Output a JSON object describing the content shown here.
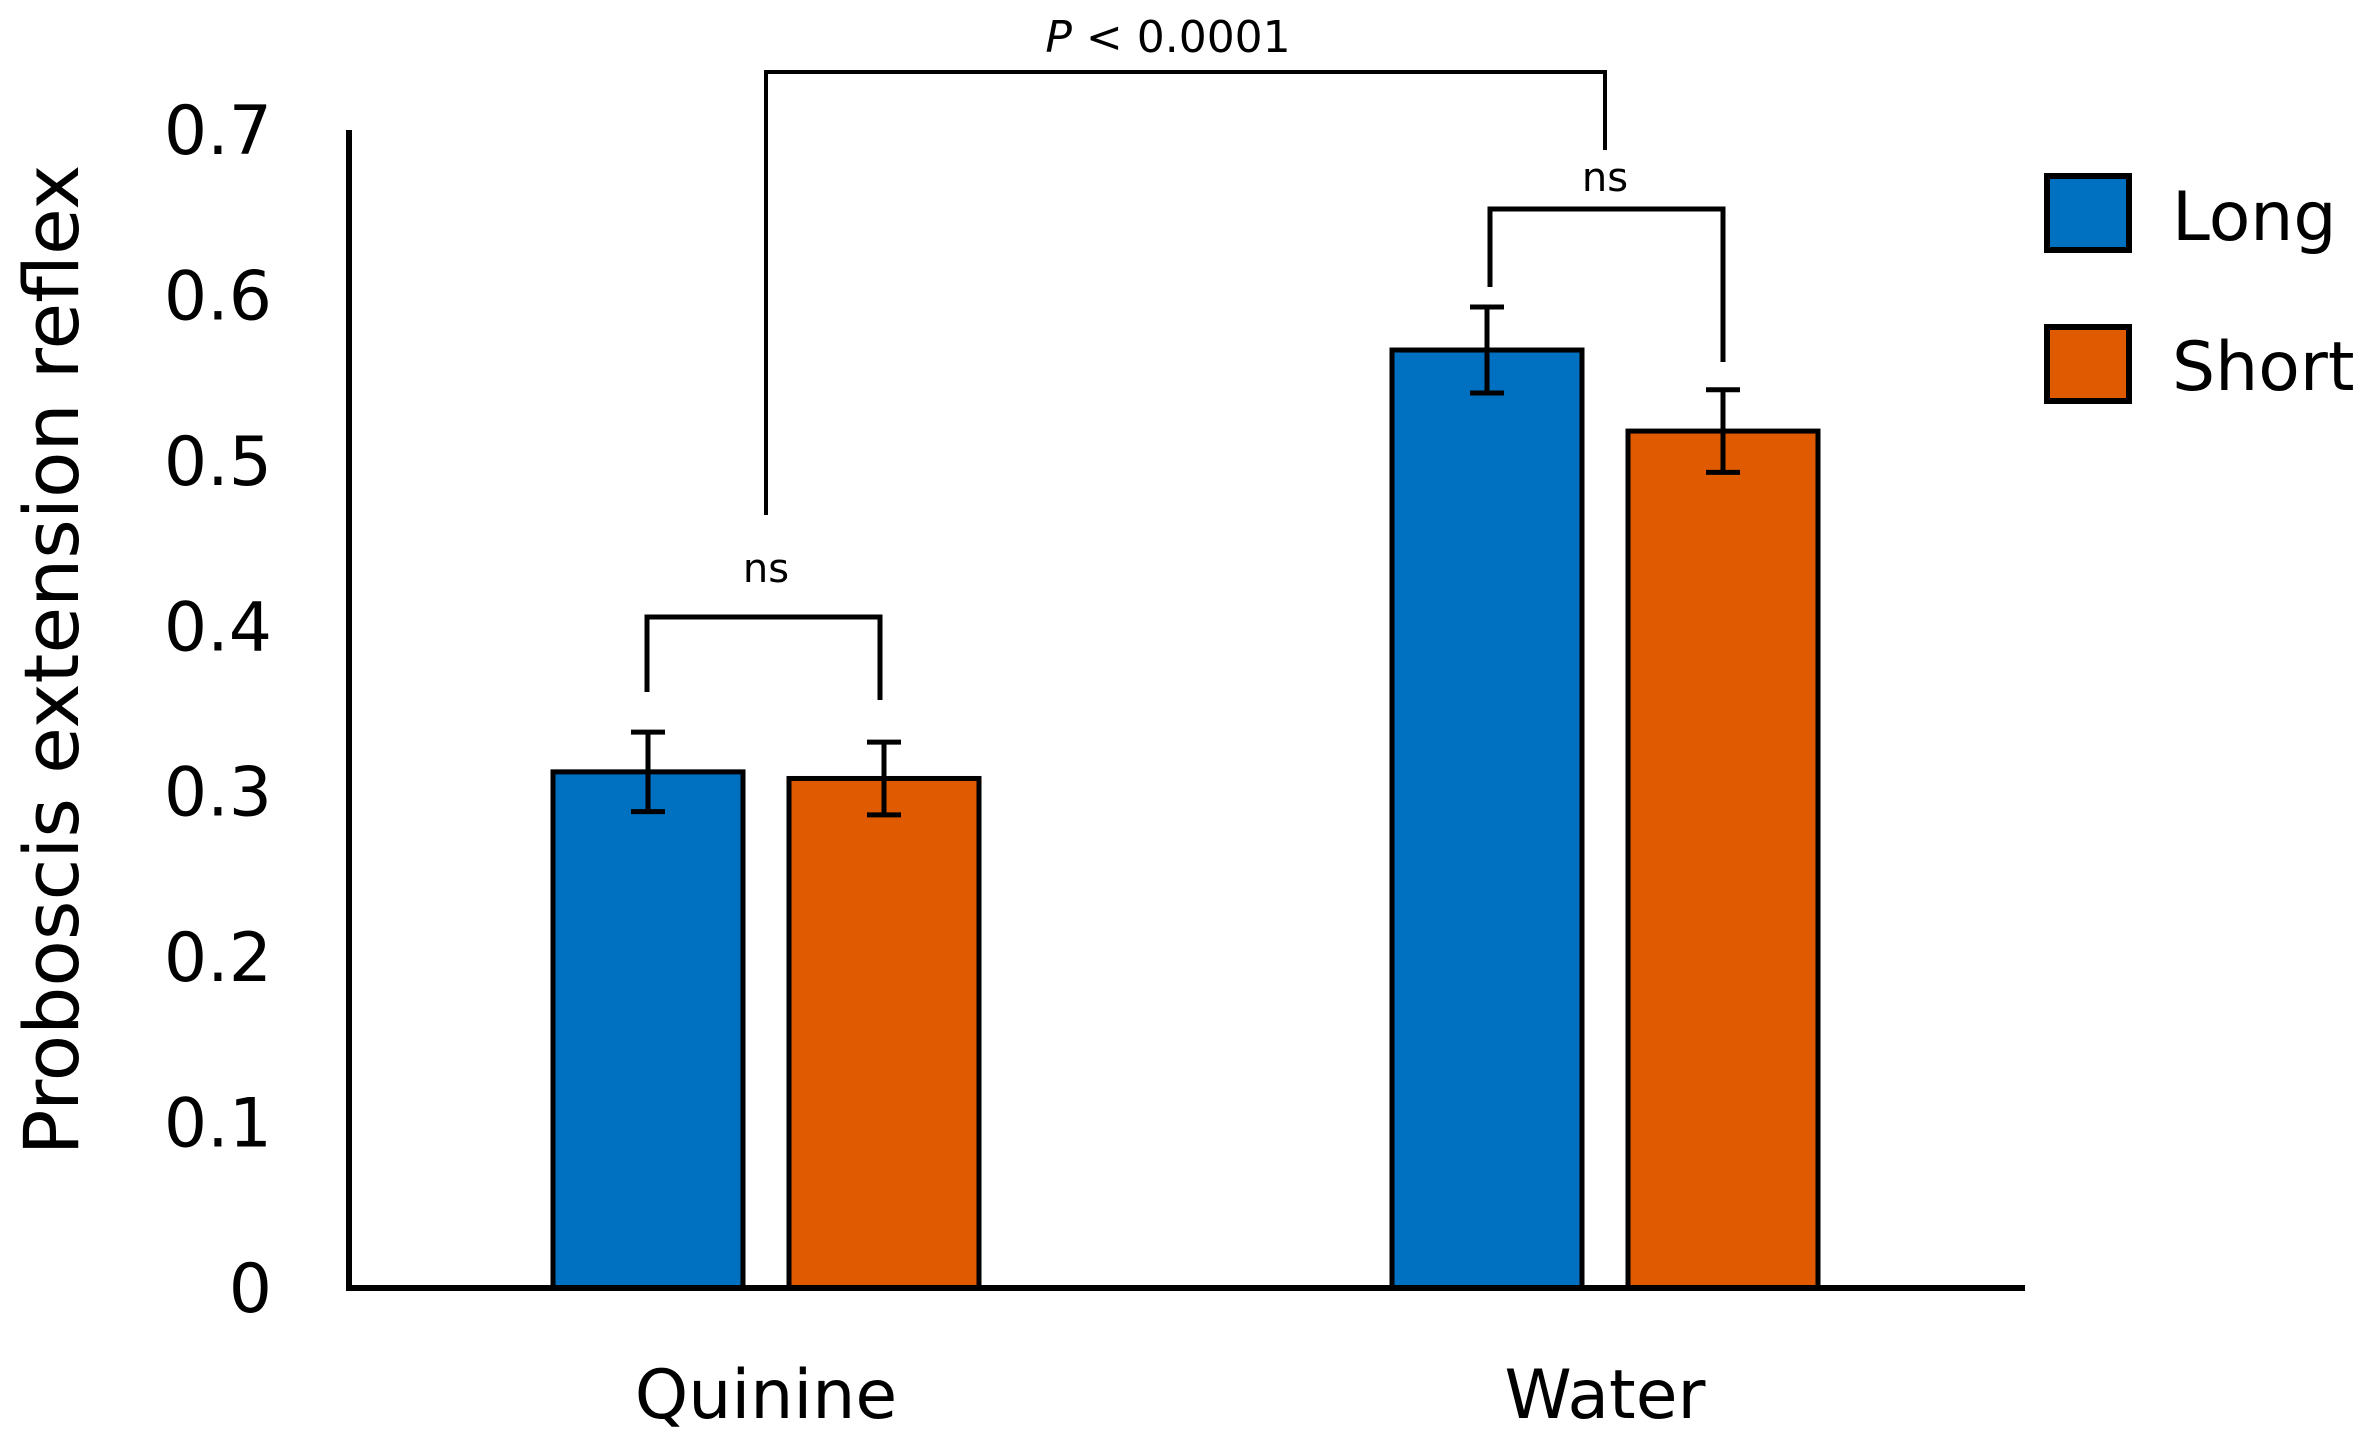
{
  "chart_data": {
    "type": "bar",
    "title": "",
    "xlabel": "",
    "ylabel": "Proboscis extension reflex",
    "ylim": [
      0,
      0.7
    ],
    "yticks": [
      "0",
      "0.1",
      "0.2",
      "0.3",
      "0.4",
      "0.5",
      "0.6",
      "0.7"
    ],
    "categories": [
      "Quinine",
      "Water"
    ],
    "series": [
      {
        "name": "Long",
        "color": "#0070C0",
        "values": [
          0.312,
          0.567
        ],
        "errors": [
          0.024,
          0.026
        ]
      },
      {
        "name": "Short",
        "color": "#E05A00",
        "values": [
          0.308,
          0.518
        ],
        "errors": [
          0.022,
          0.025
        ]
      }
    ],
    "legend_position": "top-right",
    "annotations": {
      "within_quinine": "ns",
      "within_water": "ns",
      "between": {
        "p_label": "P",
        "p_rest": " < 0.0001"
      }
    }
  }
}
